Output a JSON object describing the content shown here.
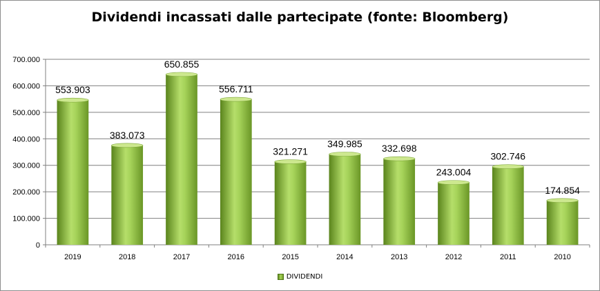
{
  "chart_data": {
    "type": "bar",
    "title": "Dividendi incassati dalle partecipate (fonte: Bloomberg)",
    "xlabel": "",
    "ylabel": "",
    "categories": [
      "2019",
      "2018",
      "2017",
      "2016",
      "2015",
      "2014",
      "2013",
      "2012",
      "2011",
      "2010"
    ],
    "series": [
      {
        "name": "DIVIDENDI",
        "values": [
          553903,
          383073,
          650855,
          556711,
          321271,
          349985,
          332698,
          243004,
          302746,
          174854
        ],
        "labels": [
          "553.903",
          "383.073",
          "650.855",
          "556.711",
          "321.271",
          "349.985",
          "332.698",
          "243.004",
          "302.746",
          "174.854"
        ]
      }
    ],
    "ylim": [
      0,
      700000
    ],
    "yticks": [
      0,
      100000,
      200000,
      300000,
      400000,
      500000,
      600000,
      700000
    ],
    "ytick_labels": [
      "0",
      "100.000",
      "200.000",
      "300.000",
      "400.000",
      "500.000",
      "600.000",
      "700.000"
    ],
    "grid": true,
    "legend_position": "bottom",
    "colors": {
      "bar_dark": "#5f8a1f",
      "bar_light": "#b3dc66",
      "bar_top": "#cde88f",
      "grid": "#7f7f7f"
    }
  }
}
